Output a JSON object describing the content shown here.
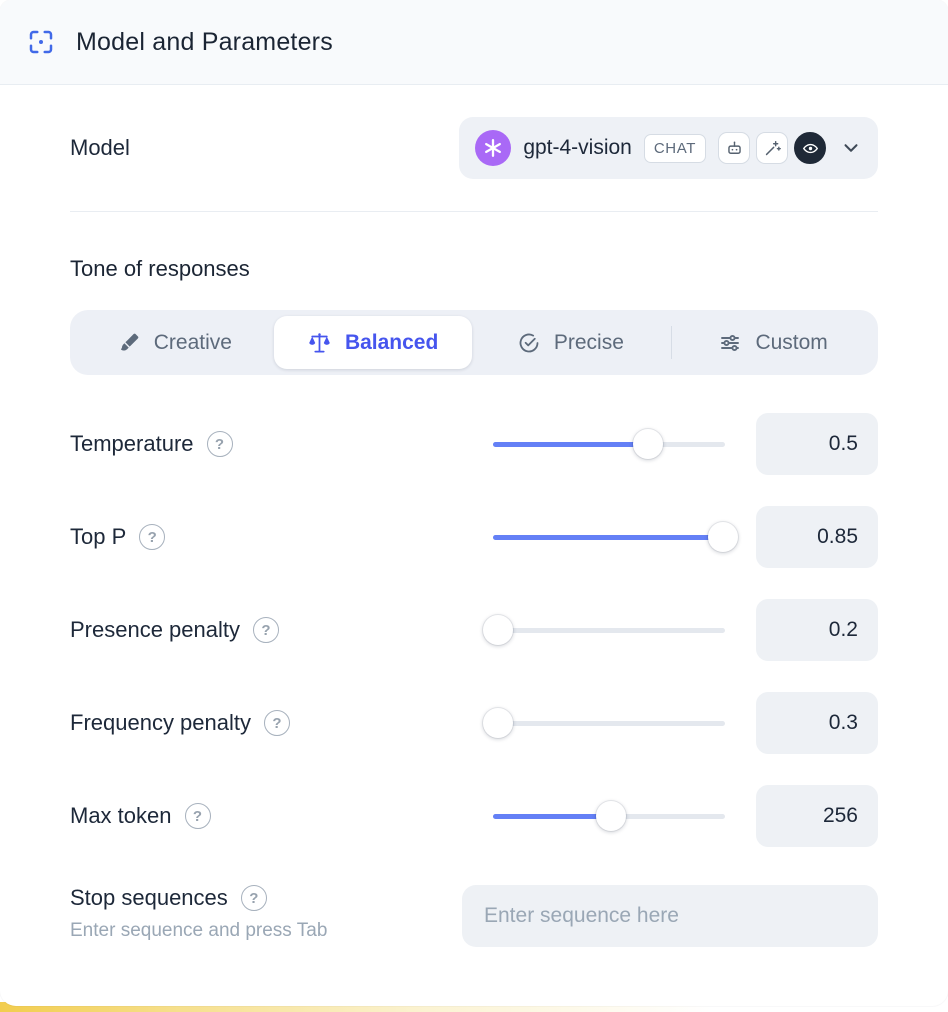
{
  "header": {
    "title": "Model and Parameters"
  },
  "model": {
    "label": "Model",
    "name": "gpt-4-vision",
    "badge": "CHAT"
  },
  "tone": {
    "heading": "Tone of responses",
    "options": [
      {
        "label": "Creative",
        "icon": "brush-icon",
        "selected": false
      },
      {
        "label": "Balanced",
        "icon": "scale-icon",
        "selected": true
      },
      {
        "label": "Precise",
        "icon": "target-check-icon",
        "selected": false
      },
      {
        "label": "Custom",
        "icon": "sliders-icon",
        "selected": false
      }
    ]
  },
  "parameters": [
    {
      "label": "Temperature",
      "value": "0.5",
      "percent": 67
    },
    {
      "label": "Top P",
      "value": "0.85",
      "percent": 99
    },
    {
      "label": "Presence penalty",
      "value": "0.2",
      "percent": 2
    },
    {
      "label": "Frequency penalty",
      "value": "0.3",
      "percent": 2
    },
    {
      "label": "Max token",
      "value": "256",
      "percent": 51
    }
  ],
  "stop": {
    "label": "Stop sequences",
    "hint": "Enter sequence and press Tab",
    "placeholder": "Enter sequence here"
  },
  "glyphs": {
    "help": "?"
  },
  "icons": {
    "header": "selection-frame-icon",
    "model_capabilities": [
      "openai-logo",
      "robot-icon",
      "wand-icon",
      "vision-icon",
      "chevron-down-icon"
    ],
    "tone": [
      "brush-icon",
      "scale-icon",
      "target-check-icon",
      "sliders-icon"
    ],
    "help": "question-circle-icon"
  },
  "colors": {
    "accent": "#4655ee",
    "slider_fill": "#6480f6",
    "openai_brand": "#a969f6",
    "header_bg": "#f8fafc"
  }
}
